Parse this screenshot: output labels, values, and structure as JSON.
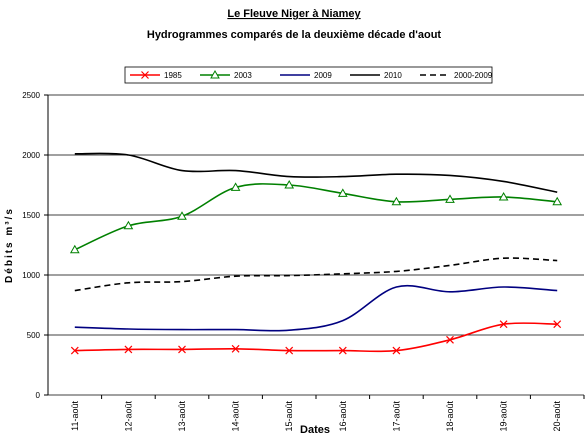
{
  "chart_data": {
    "type": "line",
    "title": "Le Fleuve Niger à Niamey",
    "subtitle": "Hydrogrammes comparés de la deuxième décade d'aout",
    "x_label": "Dates",
    "y_label": "Débits m³/s",
    "categories": [
      "11-août",
      "12-août",
      "13-août",
      "14-août",
      "15-août",
      "16-août",
      "17-août",
      "18-août",
      "19-août",
      "20-août"
    ],
    "series": [
      {
        "name": "1985",
        "color": "#ff0000",
        "marker": "x",
        "style": "solid",
        "values": [
          370,
          380,
          380,
          385,
          370,
          370,
          370,
          460,
          590,
          590
        ]
      },
      {
        "name": "2003",
        "color": "#008000",
        "marker": "triangle",
        "style": "solid",
        "values": [
          1210,
          1410,
          1490,
          1730,
          1750,
          1680,
          1610,
          1630,
          1650,
          1610
        ]
      },
      {
        "name": "2009",
        "color": "#000080",
        "marker": "none",
        "style": "solid",
        "values": [
          565,
          550,
          545,
          545,
          540,
          620,
          900,
          860,
          900,
          870
        ]
      },
      {
        "name": "2010",
        "color": "#000000",
        "marker": "none",
        "style": "solid",
        "values": [
          2010,
          2000,
          1870,
          1870,
          1820,
          1820,
          1840,
          1830,
          1780,
          1690
        ]
      },
      {
        "name": "2000-2009",
        "color": "#000000",
        "marker": "none",
        "style": "dashed",
        "values": [
          870,
          935,
          945,
          990,
          995,
          1010,
          1030,
          1080,
          1140,
          1120
        ]
      }
    ],
    "ylim": [
      0,
      2500
    ],
    "yticks": [
      0,
      500,
      1000,
      1500,
      2000,
      2500
    ],
    "grid": true,
    "legend": "top"
  }
}
